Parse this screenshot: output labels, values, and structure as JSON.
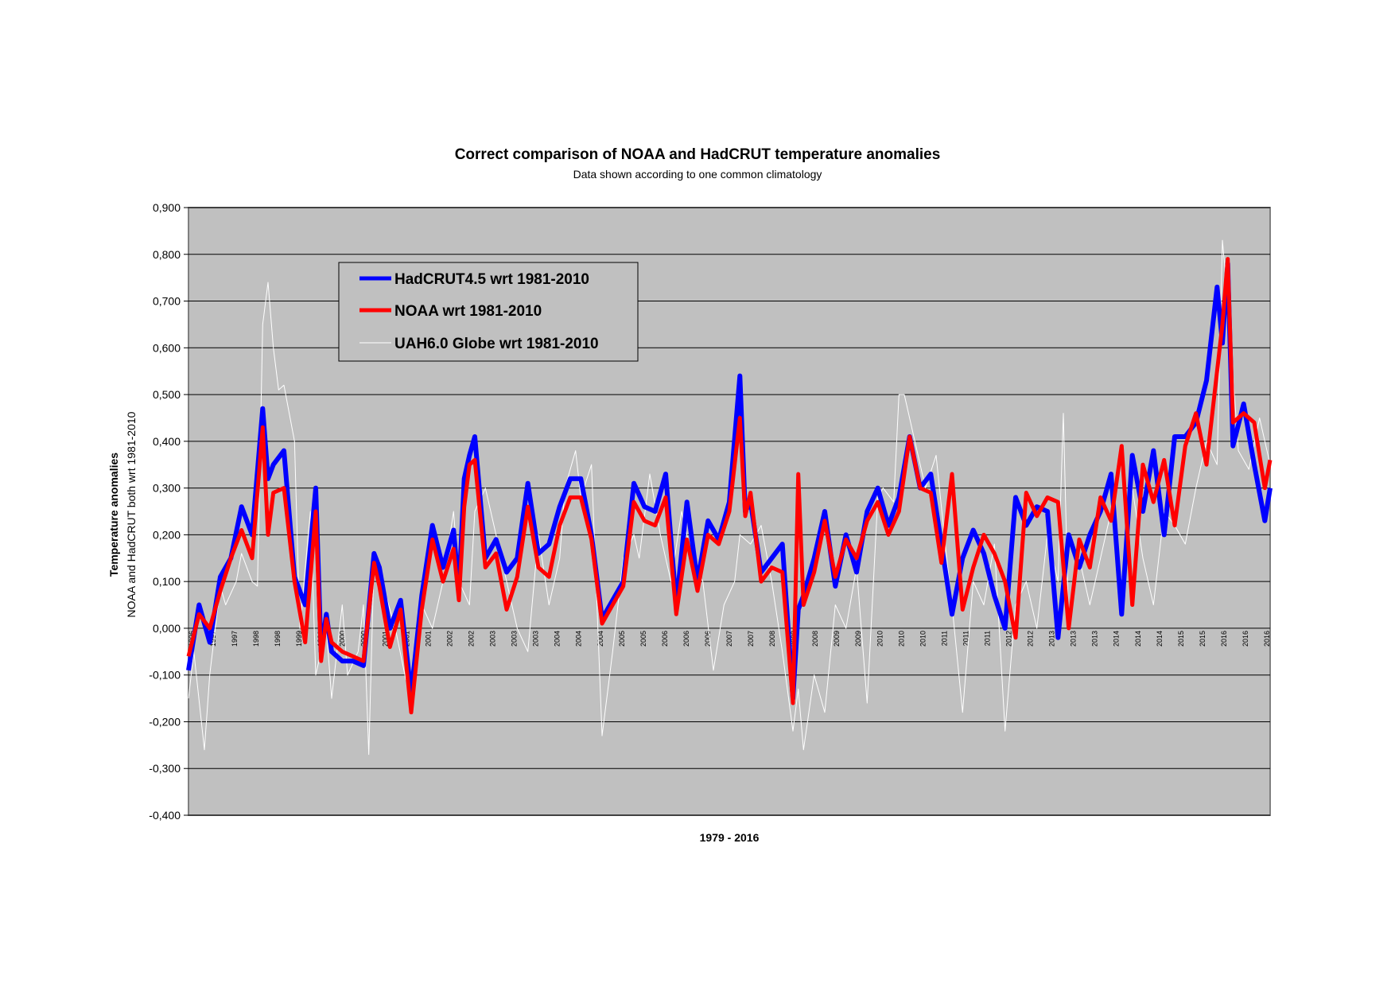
{
  "chart_data": {
    "type": "line",
    "title": "Correct comparison of NOAA and HadCRUT temperature anomalies",
    "subtitle": "Data shown according to one common climatology",
    "xlabel": "1979 - 2016",
    "ylabel": "Temperature anomalies",
    "ylabel2": "NOAA and HadCRUT both wrt 1981-2010",
    "ylim": [
      -0.4,
      0.9
    ],
    "xlim": [
      1996.5,
      2016.9
    ],
    "yticks": [
      "-0,400",
      "-0,300",
      "-0,200",
      "-0,100",
      "0,000",
      "0,100",
      "0,200",
      "0,300",
      "0,400",
      "0,500",
      "0,600",
      "0,700",
      "0,800",
      "0,900"
    ],
    "xticks": [
      "1996",
      "1997",
      "1997",
      "1998",
      "1998",
      "1999",
      "1999",
      "2000",
      "2000",
      "2001",
      "2001",
      "2001",
      "2002",
      "2002",
      "2003",
      "2003",
      "2003",
      "2004",
      "2004",
      "2004",
      "2005",
      "2005",
      "2006",
      "2006",
      "2006",
      "2007",
      "2007",
      "2008",
      "2008",
      "2008",
      "2009",
      "2009",
      "2010",
      "2010",
      "2010",
      "2011",
      "2011",
      "2011",
      "2012",
      "2012",
      "2013",
      "2013",
      "2013",
      "2014",
      "2014",
      "2014",
      "2015",
      "2015",
      "2016",
      "2016",
      "2016"
    ],
    "grid": true,
    "legend_position": "top-left",
    "colors": {
      "plot_bg": "#c0c0c0",
      "grid": "#000000",
      "hadcrut": "#0000ff",
      "noaa": "#ff0000",
      "uah": "#ffffff"
    },
    "series": [
      {
        "name": "HadCRUT4.5 wrt 1981-2010",
        "x": [
          1996.5,
          1996.7,
          1996.9,
          1997.1,
          1997.3,
          1997.5,
          1997.7,
          1997.9,
          1998.0,
          1998.1,
          1998.3,
          1998.5,
          1998.7,
          1998.9,
          1999.0,
          1999.1,
          1999.2,
          1999.4,
          1999.6,
          1999.8,
          2000.0,
          2000.1,
          2000.3,
          2000.5,
          2000.7,
          2000.9,
          2001.1,
          2001.3,
          2001.5,
          2001.6,
          2001.7,
          2001.8,
          2001.9,
          2002.1,
          2002.3,
          2002.5,
          2002.7,
          2002.9,
          2003.1,
          2003.3,
          2003.5,
          2003.7,
          2003.9,
          2004.1,
          2004.3,
          2004.5,
          2004.7,
          2004.9,
          2005.1,
          2005.3,
          2005.5,
          2005.7,
          2005.9,
          2006.1,
          2006.3,
          2006.5,
          2006.7,
          2006.9,
          2007.0,
          2007.1,
          2007.3,
          2007.5,
          2007.7,
          2007.9,
          2008.0,
          2008.1,
          2008.3,
          2008.5,
          2008.7,
          2008.9,
          2009.1,
          2009.3,
          2009.5,
          2009.7,
          2009.9,
          2010.1,
          2010.3,
          2010.5,
          2010.7,
          2010.9,
          2011.1,
          2011.3,
          2011.5,
          2011.7,
          2011.9,
          2012.1,
          2012.3,
          2012.5,
          2012.7,
          2012.9,
          2013.1,
          2013.3,
          2013.5,
          2013.7,
          2013.9,
          2014.1,
          2014.3,
          2014.5,
          2014.7,
          2014.9,
          2015.1,
          2015.3,
          2015.5,
          2015.7,
          2015.9,
          2016.0,
          2016.1,
          2016.2,
          2016.4,
          2016.6,
          2016.8,
          2016.9
        ],
        "y": [
          -0.09,
          0.05,
          -0.03,
          0.11,
          0.15,
          0.26,
          0.2,
          0.47,
          0.32,
          0.35,
          0.38,
          0.11,
          0.05,
          0.3,
          -0.05,
          0.03,
          -0.05,
          -0.07,
          -0.07,
          -0.08,
          0.16,
          0.13,
          0.0,
          0.06,
          -0.14,
          0.07,
          0.22,
          0.13,
          0.21,
          0.08,
          0.32,
          0.37,
          0.41,
          0.15,
          0.19,
          0.12,
          0.15,
          0.31,
          0.16,
          0.18,
          0.26,
          0.32,
          0.32,
          0.2,
          0.02,
          0.06,
          0.1,
          0.31,
          0.26,
          0.25,
          0.33,
          0.05,
          0.27,
          0.1,
          0.23,
          0.19,
          0.27,
          0.54,
          0.25,
          0.27,
          0.12,
          0.15,
          0.18,
          -0.15,
          0.04,
          0.07,
          0.15,
          0.25,
          0.09,
          0.2,
          0.12,
          0.25,
          0.3,
          0.22,
          0.28,
          0.41,
          0.3,
          0.33,
          0.18,
          0.03,
          0.15,
          0.21,
          0.16,
          0.07,
          0.0,
          0.28,
          0.22,
          0.26,
          0.25,
          -0.02,
          0.2,
          0.13,
          0.2,
          0.25,
          0.33,
          0.03,
          0.37,
          0.25,
          0.38,
          0.2,
          0.41,
          0.41,
          0.44,
          0.53,
          0.73,
          0.61,
          0.78,
          0.39,
          0.48,
          0.35,
          0.23,
          0.3
        ]
      },
      {
        "name": "NOAA wrt 1981-2010",
        "x": [
          1996.5,
          1996.7,
          1996.9,
          1997.1,
          1997.3,
          1997.5,
          1997.7,
          1997.9,
          1998.0,
          1998.1,
          1998.3,
          1998.5,
          1998.7,
          1998.9,
          1999.0,
          1999.1,
          1999.2,
          1999.4,
          1999.6,
          1999.8,
          2000.0,
          2000.1,
          2000.3,
          2000.5,
          2000.7,
          2000.9,
          2001.1,
          2001.3,
          2001.5,
          2001.6,
          2001.7,
          2001.8,
          2001.9,
          2002.1,
          2002.3,
          2002.5,
          2002.7,
          2002.9,
          2003.1,
          2003.3,
          2003.5,
          2003.7,
          2003.9,
          2004.1,
          2004.3,
          2004.5,
          2004.7,
          2004.9,
          2005.1,
          2005.3,
          2005.5,
          2005.7,
          2005.9,
          2006.1,
          2006.3,
          2006.5,
          2006.7,
          2006.9,
          2007.0,
          2007.1,
          2007.3,
          2007.5,
          2007.7,
          2007.9,
          2008.0,
          2008.1,
          2008.3,
          2008.5,
          2008.7,
          2008.9,
          2009.1,
          2009.3,
          2009.5,
          2009.7,
          2009.9,
          2010.1,
          2010.3,
          2010.5,
          2010.7,
          2010.9,
          2011.1,
          2011.3,
          2011.5,
          2011.7,
          2011.9,
          2012.1,
          2012.3,
          2012.5,
          2012.7,
          2012.9,
          2013.1,
          2013.3,
          2013.5,
          2013.7,
          2013.9,
          2014.1,
          2014.3,
          2014.5,
          2014.7,
          2014.9,
          2015.1,
          2015.3,
          2015.5,
          2015.7,
          2015.9,
          2016.0,
          2016.1,
          2016.2,
          2016.4,
          2016.6,
          2016.8,
          2016.9
        ],
        "y": [
          -0.06,
          0.03,
          0.0,
          0.08,
          0.15,
          0.21,
          0.15,
          0.43,
          0.2,
          0.29,
          0.3,
          0.1,
          -0.03,
          0.25,
          -0.07,
          0.02,
          -0.03,
          -0.05,
          -0.06,
          -0.07,
          0.14,
          0.09,
          -0.04,
          0.04,
          -0.18,
          0.04,
          0.19,
          0.1,
          0.17,
          0.06,
          0.26,
          0.35,
          0.36,
          0.13,
          0.16,
          0.04,
          0.11,
          0.26,
          0.13,
          0.11,
          0.22,
          0.28,
          0.28,
          0.19,
          0.01,
          0.05,
          0.09,
          0.27,
          0.23,
          0.22,
          0.28,
          0.03,
          0.19,
          0.08,
          0.2,
          0.18,
          0.25,
          0.45,
          0.24,
          0.29,
          0.1,
          0.13,
          0.12,
          -0.16,
          0.33,
          0.05,
          0.12,
          0.23,
          0.11,
          0.19,
          0.15,
          0.23,
          0.27,
          0.2,
          0.25,
          0.41,
          0.3,
          0.29,
          0.14,
          0.33,
          0.04,
          0.13,
          0.2,
          0.16,
          0.1,
          -0.02,
          0.29,
          0.24,
          0.28,
          0.27,
          0.0,
          0.19,
          0.13,
          0.28,
          0.23,
          0.39,
          0.05,
          0.35,
          0.27,
          0.36,
          0.22,
          0.39,
          0.46,
          0.35,
          0.55,
          0.65,
          0.79,
          0.44,
          0.46,
          0.44,
          0.3,
          0.36
        ]
      },
      {
        "name": "UAH6.0 Globe wrt 1981-2010",
        "x": [
          1996.5,
          1996.6,
          1996.8,
          1996.9,
          1997.1,
          1997.2,
          1997.4,
          1997.5,
          1997.7,
          1997.8,
          1997.9,
          1998.0,
          1998.1,
          1998.2,
          1998.3,
          1998.5,
          1998.6,
          1998.8,
          1998.9,
          1999.1,
          1999.2,
          1999.4,
          1999.5,
          1999.7,
          1999.8,
          1999.9,
          2000.0,
          2000.2,
          2000.4,
          2000.6,
          2000.8,
          2000.9,
          2001.1,
          2001.3,
          2001.5,
          2001.6,
          2001.8,
          2001.9,
          2002.1,
          2002.3,
          2002.5,
          2002.7,
          2002.9,
          2003.1,
          2003.3,
          2003.5,
          2003.6,
          2003.8,
          2003.9,
          2004.1,
          2004.3,
          2004.5,
          2004.7,
          2004.9,
          2005.0,
          2005.2,
          2005.4,
          2005.6,
          2005.8,
          2006.0,
          2006.2,
          2006.4,
          2006.6,
          2006.8,
          2006.9,
          2007.1,
          2007.3,
          2007.5,
          2007.7,
          2007.9,
          2008.0,
          2008.1,
          2008.3,
          2008.5,
          2008.7,
          2008.9,
          2009.1,
          2009.3,
          2009.5,
          2009.6,
          2009.8,
          2009.9,
          2010.0,
          2010.2,
          2010.4,
          2010.6,
          2010.8,
          2010.9,
          2011.1,
          2011.3,
          2011.5,
          2011.7,
          2011.9,
          2012.1,
          2012.3,
          2012.5,
          2012.7,
          2012.9,
          2013.0,
          2013.1,
          2013.3,
          2013.5,
          2013.7,
          2013.9,
          2014.1,
          2014.3,
          2014.5,
          2014.7,
          2014.9,
          2015.1,
          2015.3,
          2015.5,
          2015.7,
          2015.9,
          2016.0,
          2016.1,
          2016.3,
          2016.5,
          2016.7,
          2016.9
        ],
        "y": [
          -0.15,
          -0.05,
          -0.26,
          -0.1,
          0.09,
          0.05,
          0.1,
          0.16,
          0.1,
          0.09,
          0.65,
          0.74,
          0.6,
          0.51,
          0.52,
          0.4,
          0.0,
          0.25,
          -0.1,
          0.0,
          -0.15,
          0.05,
          -0.1,
          -0.05,
          0.05,
          -0.27,
          0.15,
          0.08,
          0.0,
          -0.11,
          -0.08,
          0.05,
          0.0,
          0.1,
          0.25,
          0.1,
          0.05,
          0.25,
          0.3,
          0.2,
          0.1,
          0.0,
          -0.05,
          0.2,
          0.05,
          0.15,
          0.3,
          0.38,
          0.28,
          0.35,
          -0.23,
          -0.05,
          0.15,
          0.2,
          0.15,
          0.33,
          0.2,
          0.1,
          0.25,
          0.15,
          0.1,
          -0.09,
          0.05,
          0.1,
          0.2,
          0.18,
          0.22,
          0.1,
          -0.05,
          -0.22,
          -0.13,
          -0.26,
          -0.1,
          -0.18,
          0.05,
          0.0,
          0.13,
          -0.16,
          0.28,
          0.3,
          0.27,
          0.5,
          0.5,
          0.4,
          0.3,
          0.37,
          0.15,
          0.05,
          -0.18,
          0.1,
          0.05,
          0.18,
          -0.22,
          0.05,
          0.1,
          0.0,
          0.2,
          0.1,
          0.46,
          0.0,
          0.15,
          0.05,
          0.15,
          0.25,
          0.1,
          0.3,
          0.15,
          0.05,
          0.25,
          0.22,
          0.18,
          0.3,
          0.4,
          0.35,
          0.83,
          0.7,
          0.38,
          0.34,
          0.45,
          0.35
        ]
      }
    ]
  }
}
